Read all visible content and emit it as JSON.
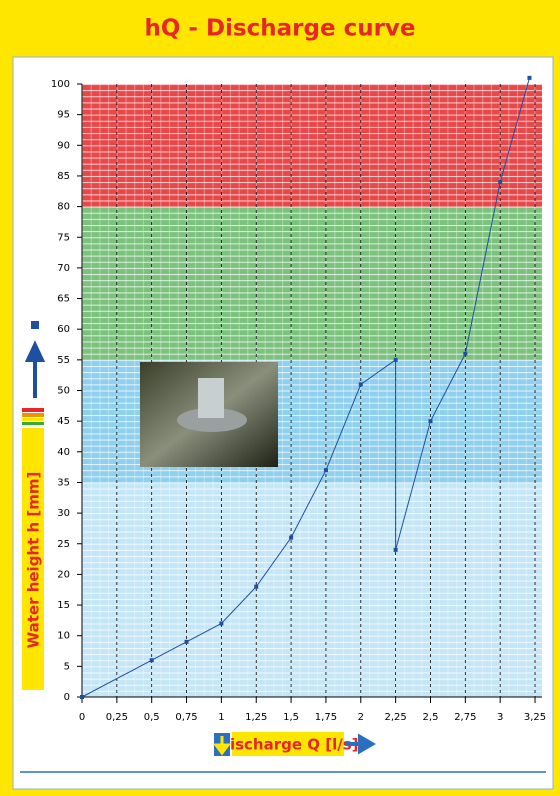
{
  "chart_data": {
    "type": "line",
    "title": "hQ - Discharge curve",
    "x_label": "Discharge Q [l/s]",
    "y_label": "Water height h [mm]",
    "x": [
      0,
      0.5,
      0.75,
      1,
      1.25,
      1.5,
      1.75,
      2,
      2.25,
      2.25,
      2.5,
      2.75,
      3,
      3.21
    ],
    "values": [
      0,
      6,
      9,
      12,
      18,
      26,
      37,
      51,
      55,
      24,
      45,
      56,
      84,
      101
    ],
    "color": "#1f4fa0",
    "xlim": [
      0,
      3.3
    ],
    "ylim": [
      0,
      100
    ],
    "xticks": [
      0,
      {
        "value": 0.25,
        "label": "0,25"
      },
      {
        "value": 0.5,
        "label": "0,5"
      },
      {
        "value": 0.75,
        "label": "0,75"
      },
      1,
      {
        "value": 1.25,
        "label": "1,25"
      },
      {
        "value": 1.5,
        "label": "1,5"
      },
      {
        "value": 1.75,
        "label": "1,75"
      },
      2,
      {
        "value": 2.25,
        "label": "2,25"
      },
      {
        "value": 2.5,
        "label": "2,5"
      },
      {
        "value": 2.75,
        "label": "2,75"
      },
      3,
      {
        "value": 3.25,
        "label": "3,25"
      }
    ],
    "yticks": [
      0,
      5,
      10,
      15,
      20,
      25,
      30,
      35,
      40,
      45,
      50,
      55,
      60,
      65,
      70,
      75,
      80,
      85,
      90,
      95,
      100
    ],
    "zones": [
      {
        "from": 0,
        "to": 35,
        "color": "#c5e6f7"
      },
      {
        "from": 35,
        "to": 55,
        "color": "#8fd0ef"
      },
      {
        "from": 55,
        "to": 80,
        "color": "#7cc27e"
      },
      {
        "from": 80,
        "to": 100,
        "color": "#e8484a"
      }
    ],
    "grid": true
  }
}
